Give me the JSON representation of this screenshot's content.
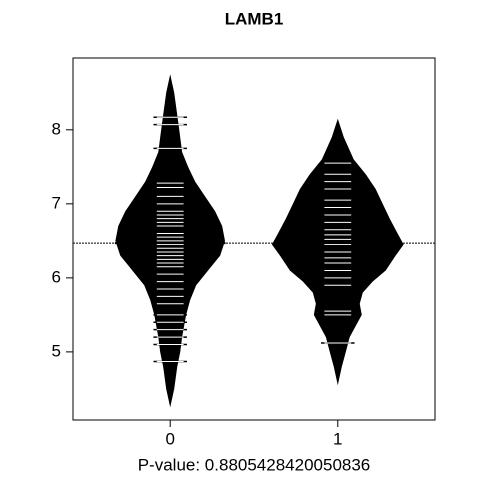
{
  "chart_data": {
    "type": "beanplot",
    "title": "LAMB1",
    "xlabel": "P-value: 0.8805428420050836",
    "categories": [
      "0",
      "1"
    ],
    "color": "#000000",
    "xlim": [
      -0.58,
      1.58
    ],
    "ylim": [
      4.08,
      8.97
    ],
    "yticks": [
      5,
      6,
      7,
      8
    ],
    "density": [
      {
        "y": [
          8.75,
          8.5,
          8.2,
          8.0,
          7.7,
          7.5,
          7.3,
          7.1,
          6.9,
          6.7,
          6.5,
          6.3,
          6.1,
          5.9,
          5.7,
          5.5,
          5.2,
          5.0,
          4.8,
          4.5,
          4.25
        ],
        "width": [
          0,
          0.024,
          0.042,
          0.054,
          0.071,
          0.107,
          0.149,
          0.208,
          0.268,
          0.31,
          0.327,
          0.298,
          0.226,
          0.155,
          0.119,
          0.095,
          0.071,
          0.06,
          0.042,
          0.024,
          0
        ]
      },
      {
        "y": [
          8.15,
          7.9,
          7.6,
          7.4,
          7.2,
          7.0,
          6.8,
          6.6,
          6.45,
          6.3,
          6.1,
          5.95,
          5.8,
          5.65,
          5.5,
          5.35,
          5.2,
          5.0,
          4.8,
          4.55
        ],
        "width": [
          0,
          0.036,
          0.095,
          0.167,
          0.226,
          0.268,
          0.31,
          0.357,
          0.393,
          0.345,
          0.286,
          0.208,
          0.149,
          0.131,
          0.143,
          0.107,
          0.071,
          0.048,
          0.024,
          0
        ]
      }
    ],
    "observations": [
      [
        8.17,
        8.07,
        7.75,
        7.28,
        7.22,
        7.1,
        7.0,
        6.9,
        6.85,
        6.8,
        6.75,
        6.7,
        6.6,
        6.55,
        6.5,
        6.45,
        6.4,
        6.35,
        6.3,
        6.25,
        6.2,
        6.15,
        6.05,
        5.95,
        5.85,
        5.75,
        5.65,
        5.5,
        5.4,
        5.3,
        5.2,
        5.1,
        4.87
      ],
      [
        7.55,
        7.4,
        7.3,
        7.2,
        7.05,
        6.95,
        6.85,
        6.75,
        6.65,
        6.58,
        6.52,
        6.45,
        6.35,
        6.27,
        6.2,
        6.1,
        6.0,
        5.9,
        5.55,
        5.5,
        5.12
      ]
    ],
    "means": [
      6.47,
      6.47
    ],
    "overall_mean": 6.47
  }
}
